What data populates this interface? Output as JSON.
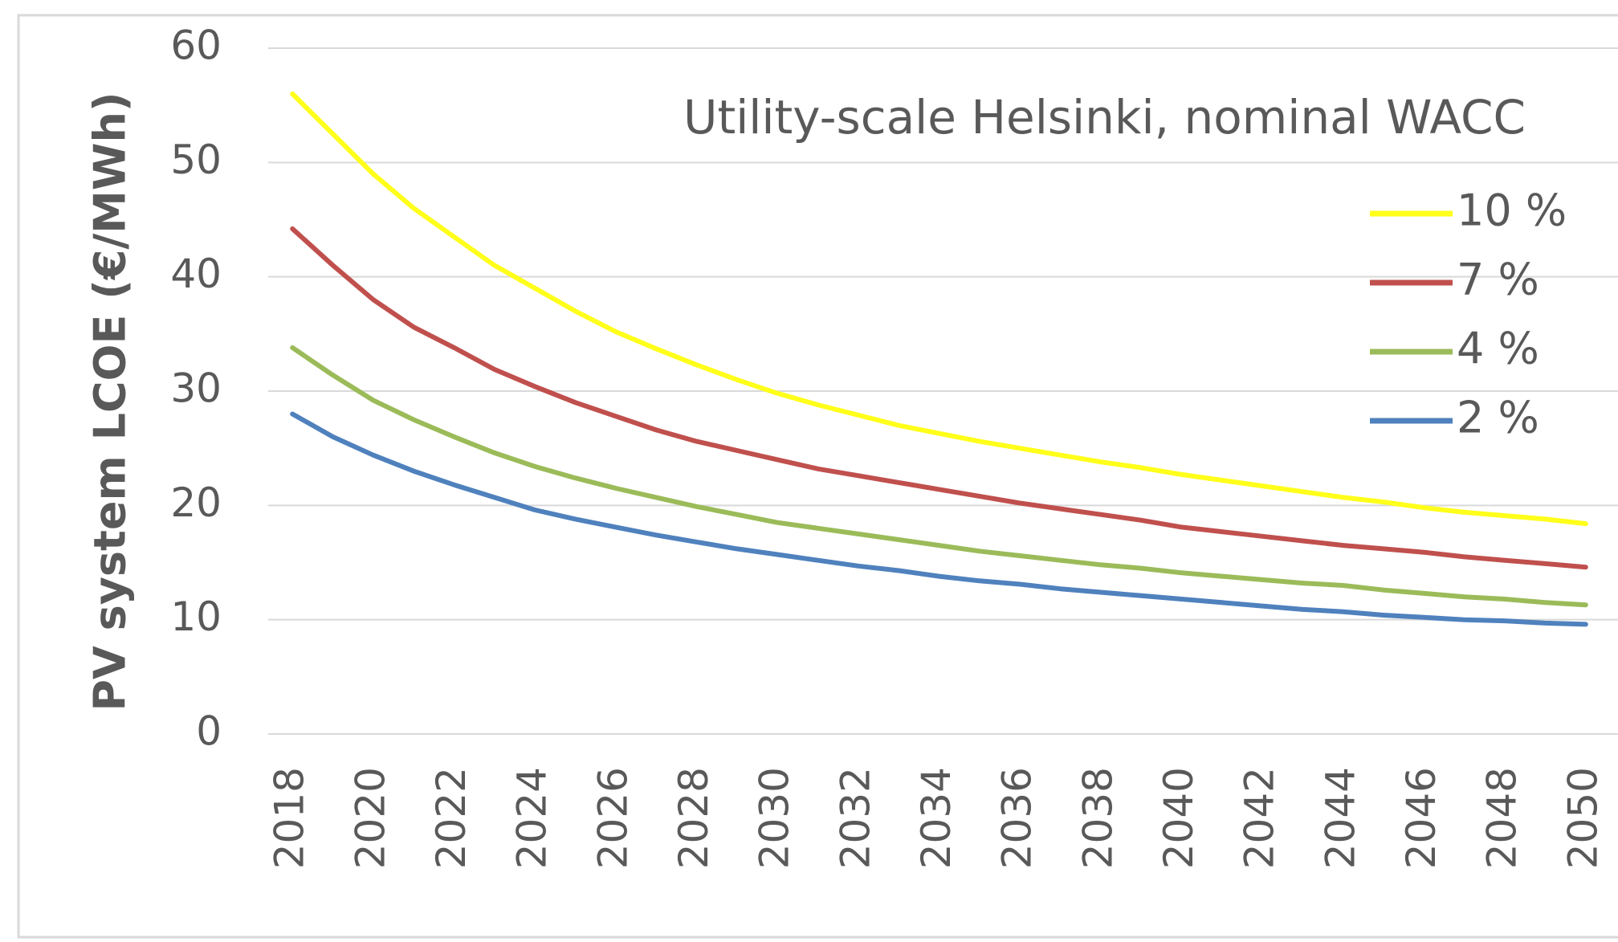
{
  "chart_data": {
    "type": "line",
    "title": "Utility-scale Helsinki, nominal WACC",
    "y_label": "PV system LCOE (€/MWh)",
    "x": [
      2018,
      2019,
      2020,
      2021,
      2022,
      2023,
      2024,
      2025,
      2026,
      2027,
      2028,
      2029,
      2030,
      2031,
      2032,
      2033,
      2034,
      2035,
      2036,
      2037,
      2038,
      2039,
      2040,
      2041,
      2042,
      2043,
      2044,
      2045,
      2046,
      2047,
      2048,
      2049,
      2050
    ],
    "series": [
      {
        "name": "10 %",
        "color": "#ffff1a",
        "values": [
          56,
          52.5,
          49,
          46,
          43.5,
          41,
          39,
          37,
          35.2,
          33.7,
          32.3,
          31,
          29.8,
          28.8,
          27.9,
          27,
          26.3,
          25.6,
          25,
          24.4,
          23.8,
          23.3,
          22.7,
          22.2,
          21.7,
          21.2,
          20.7,
          20.3,
          19.8,
          19.4,
          19.1,
          18.8,
          18.4
        ]
      },
      {
        "name": "7 %",
        "color": "#c0504d",
        "values": [
          44.2,
          41,
          38,
          35.6,
          33.8,
          31.9,
          30.4,
          29,
          27.8,
          26.6,
          25.6,
          24.8,
          24,
          23.2,
          22.6,
          22,
          21.4,
          20.8,
          20.2,
          19.7,
          19.2,
          18.7,
          18.1,
          17.7,
          17.3,
          16.9,
          16.5,
          16.2,
          15.9,
          15.5,
          15.2,
          14.9,
          14.6
        ]
      },
      {
        "name": "4 %",
        "color": "#9bbb59",
        "values": [
          33.8,
          31.4,
          29.2,
          27.5,
          26,
          24.6,
          23.4,
          22.4,
          21.5,
          20.7,
          19.9,
          19.2,
          18.5,
          18,
          17.5,
          17,
          16.5,
          16,
          15.6,
          15.2,
          14.8,
          14.5,
          14.1,
          13.8,
          13.5,
          13.2,
          13,
          12.6,
          12.3,
          12,
          11.8,
          11.5,
          11.3
        ]
      },
      {
        "name": "2 %",
        "color": "#4f81bd",
        "values": [
          28,
          26,
          24.4,
          23,
          21.8,
          20.7,
          19.6,
          18.8,
          18.1,
          17.4,
          16.8,
          16.2,
          15.7,
          15.2,
          14.7,
          14.3,
          13.8,
          13.4,
          13.1,
          12.7,
          12.4,
          12.1,
          11.8,
          11.5,
          11.2,
          10.9,
          10.7,
          10.4,
          10.2,
          10,
          9.9,
          9.7,
          9.6
        ]
      }
    ],
    "xlim": [
      2017.5,
      2050.5
    ],
    "xticks": [
      2018,
      2020,
      2022,
      2024,
      2026,
      2028,
      2030,
      2032,
      2034,
      2036,
      2038,
      2040,
      2042,
      2044,
      2046,
      2048,
      2050
    ],
    "ylim": [
      0,
      60
    ],
    "yticks": [
      0,
      10,
      20,
      30,
      40,
      50,
      60
    ],
    "grid": true,
    "legend": "upper right"
  }
}
